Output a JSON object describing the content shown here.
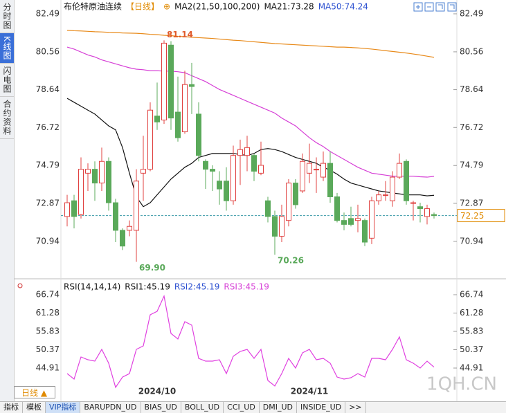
{
  "sidebar": [
    "分时图",
    "K线图",
    "闪电图",
    "合约资料"
  ],
  "sidebar_active": 1,
  "period_button": "日线 ▲",
  "toolbar": [
    "指标",
    "模板",
    "VIP指标",
    "BARUPDN_UD",
    "BIAS_UD",
    "BOLL_UD",
    "CCI_UD",
    "DMI_UD",
    "INSIDE_UD",
    ">>"
  ],
  "toolbar_active": 2,
  "watermark": "1QH.CN",
  "chart_data": [
    {
      "type": "candlestick",
      "title": "布伦特原油连续",
      "period": "【日线】",
      "period_icon": "⊕",
      "indicator": "MA2(21,50,100,200)",
      "legend": [
        {
          "text": "MA21:73.28",
          "color": "#111111"
        },
        {
          "text": "MA50:74.24",
          "color": "#2b4fd0"
        }
      ],
      "categories": [
        null,
        null,
        null,
        null,
        null,
        null,
        null,
        null,
        null,
        null,
        null,
        null,
        null,
        "2024/10",
        null,
        null,
        null,
        null,
        null,
        null,
        null,
        null,
        null,
        null,
        null,
        null,
        null,
        null,
        null,
        null,
        null,
        null,
        null,
        null,
        null,
        "2024/11",
        null,
        null,
        null,
        null,
        null,
        null,
        null,
        null,
        null,
        null,
        null,
        null,
        null,
        null,
        null,
        null,
        null,
        null
      ],
      "open": [
        72.2,
        73.0,
        72.3,
        74.4,
        74.6,
        73.9,
        75.0,
        72.9,
        71.5,
        71.5,
        71.5,
        74.4,
        74.6,
        77.3,
        77.1,
        80.9,
        77.5,
        76.5,
        78.9,
        77.4,
        75.0,
        74.6,
        74.0,
        74.0,
        73.0,
        75.3,
        75.3,
        75.3,
        74.4,
        73.0,
        72.2,
        71.2,
        72.0,
        73.9,
        73.5,
        74.4,
        74.6,
        74.2,
        74.9,
        73.2,
        72.0,
        72.1,
        72.0,
        72.0,
        71.1,
        73.0,
        73.3,
        73.0,
        74.2,
        75.0,
        72.9,
        72.7,
        72.2,
        72.3
      ],
      "high": [
        73.3,
        73.3,
        75.2,
        74.9,
        75.0,
        75.7,
        75.2,
        73.1,
        71.6,
        72.0,
        74.6,
        76.3,
        78.0,
        79.0,
        81.14,
        81.1,
        79.3,
        79.6,
        80.0,
        78.0,
        75.1,
        74.8,
        74.5,
        74.7,
        75.8,
        76.1,
        76.3,
        75.4,
        76.0,
        73.2,
        72.5,
        72.8,
        74.1,
        74.1,
        75.4,
        75.9,
        75.2,
        75.5,
        75.5,
        73.4,
        72.4,
        72.7,
        72.8,
        72.1,
        73.2,
        73.5,
        74.0,
        74.5,
        75.4,
        75.1,
        73.0,
        72.9,
        72.8,
        72.4
      ],
      "low": [
        71.7,
        71.6,
        72.1,
        73.5,
        73.0,
        73.5,
        72.5,
        70.9,
        70.5,
        71.2,
        69.9,
        73.0,
        74.5,
        76.6,
        76.9,
        76.6,
        76.0,
        76.4,
        77.4,
        75.0,
        73.6,
        73.5,
        72.8,
        72.5,
        72.8,
        73.8,
        74.5,
        74.0,
        74.3,
        71.9,
        70.26,
        70.9,
        71.7,
        72.6,
        73.4,
        73.9,
        73.4,
        74.0,
        72.9,
        71.9,
        71.5,
        71.7,
        71.4,
        70.7,
        70.8,
        72.8,
        73.0,
        72.7,
        74.1,
        72.8,
        72.0,
        71.9,
        71.8,
        72.1
      ],
      "close": [
        72.9,
        72.2,
        74.6,
        74.6,
        73.9,
        75.0,
        72.9,
        71.5,
        70.7,
        71.7,
        74.0,
        74.6,
        77.6,
        77.0,
        81.0,
        77.2,
        76.2,
        78.9,
        78.8,
        75.3,
        74.6,
        74.5,
        73.6,
        73.0,
        75.3,
        75.6,
        75.7,
        74.5,
        74.8,
        72.2,
        71.2,
        72.2,
        73.9,
        72.8,
        75.0,
        74.9,
        74.6,
        74.9,
        73.2,
        72.0,
        71.8,
        71.8,
        72.1,
        70.9,
        73.0,
        73.3,
        73.3,
        74.2,
        74.9,
        73.0,
        72.9,
        72.6,
        72.6,
        72.25
      ],
      "up_color": "#e0403f",
      "down_color": "#5aa95a",
      "series": [
        {
          "color": "#111111",
          "values": [
            78.2,
            78.0,
            77.8,
            77.6,
            77.4,
            77.1,
            76.8,
            76.6,
            75.7,
            74.4,
            73.2,
            72.7,
            72.9,
            73.3,
            73.7,
            74.1,
            74.4,
            74.7,
            74.9,
            75.2,
            75.3,
            75.4,
            75.4,
            75.4,
            75.4,
            75.35,
            75.3,
            75.4,
            75.6,
            75.65,
            75.6,
            75.5,
            75.35,
            75.2,
            75.1,
            75.0,
            74.9,
            74.7,
            74.55,
            74.35,
            74.1,
            73.9,
            73.8,
            73.7,
            73.6,
            73.5,
            73.45,
            73.4,
            73.35,
            73.3,
            73.3,
            73.3,
            73.25,
            73.28
          ]
        },
        {
          "color": "#d63fd6",
          "values": [
            80.8,
            80.7,
            80.55,
            80.4,
            80.3,
            80.15,
            80.05,
            79.95,
            79.85,
            79.75,
            79.68,
            79.65,
            79.6,
            79.6,
            79.58,
            79.58,
            79.55,
            79.5,
            79.35,
            79.2,
            79.05,
            78.85,
            78.65,
            78.5,
            78.35,
            78.2,
            78.05,
            77.9,
            77.75,
            77.6,
            77.45,
            77.2,
            77.0,
            76.8,
            76.5,
            76.2,
            75.95,
            75.75,
            75.5,
            75.3,
            75.1,
            74.9,
            74.7,
            74.55,
            74.4,
            74.35,
            74.3,
            74.25,
            74.25,
            74.25,
            74.25,
            74.22,
            74.2,
            74.24
          ]
        },
        {
          "color": "#e88a1a",
          "values": [
            81.65,
            81.63,
            81.62,
            81.6,
            81.58,
            81.57,
            81.55,
            81.54,
            81.52,
            81.51,
            81.5,
            81.48,
            81.45,
            81.43,
            81.4,
            81.38,
            81.35,
            81.33,
            81.3,
            81.28,
            81.26,
            81.24,
            81.21,
            81.18,
            81.15,
            81.13,
            81.1,
            81.07,
            81.04,
            81.01,
            80.98,
            80.96,
            80.94,
            80.92,
            80.9,
            80.88,
            80.86,
            80.84,
            80.82,
            80.8,
            80.8,
            80.78,
            80.76,
            80.73,
            80.7,
            80.66,
            80.62,
            80.58,
            80.54,
            80.5,
            80.45,
            80.4,
            80.34,
            80.28
          ]
        }
      ],
      "annotations": [
        {
          "index": 14,
          "value": 81.14,
          "label": "81.14",
          "color": "#e05a2a",
          "side": "high"
        },
        {
          "index": 10,
          "value": 69.9,
          "label": "69.90",
          "color": "#5aa95a",
          "side": "low"
        },
        {
          "index": 30,
          "value": 70.26,
          "label": "70.26",
          "color": "#5aa95a",
          "side": "low"
        }
      ],
      "last_price": {
        "value": 72.25,
        "color": "#e08a00",
        "line_color": "#3a9aa8"
      },
      "ylim": [
        82.84,
        69.32
      ],
      "yticks": [
        82.49,
        80.56,
        78.64,
        76.72,
        74.79,
        72.87,
        70.94
      ]
    },
    {
      "type": "line",
      "title": "RSI(14,14,14)",
      "legend": [
        {
          "text": "RSI1:45.19",
          "color": "#111111"
        },
        {
          "text": "RSI2:45.19",
          "color": "#2b4fd0"
        },
        {
          "text": "RSI3:45.19",
          "color": "#d63fd6"
        }
      ],
      "series": [
        {
          "color": "#e040e0",
          "values": [
            43.26,
            41.62,
            48.21,
            47.38,
            46.97,
            50.47,
            46.35,
            39.15,
            42.23,
            43.26,
            50.47,
            51.5,
            60.77,
            61.8,
            66.33,
            55.21,
            53.56,
            58.71,
            57.68,
            47.79,
            46.97,
            46.97,
            47.38,
            43.26,
            48.4,
            49.85,
            50.47,
            47.79,
            50.47,
            41.2,
            39.56,
            43.26,
            47.79,
            44.91,
            49.44,
            50.47,
            47.38,
            47.79,
            46.35,
            42.23,
            41.62,
            42.03,
            43.26,
            42.23,
            47.79,
            47.79,
            47.38,
            50.47,
            54.18,
            47.38,
            46.35,
            44.91,
            46.97,
            45.19
          ]
        }
      ],
      "ylim": [
        70.45,
        35.44
      ],
      "yticks": [
        66.74,
        61.28,
        55.83,
        50.37,
        44.91
      ]
    }
  ]
}
